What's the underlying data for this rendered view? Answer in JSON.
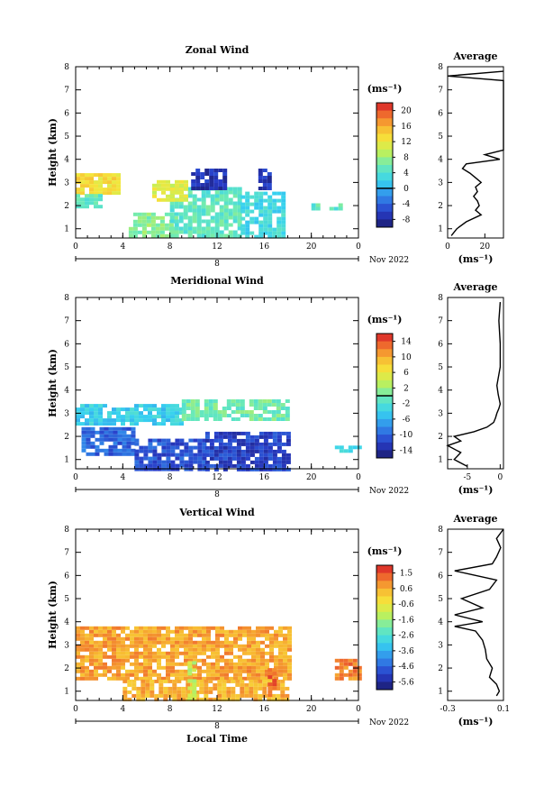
{
  "chart_data": [
    {
      "type": "heatmap",
      "title": "Zonal Wind",
      "ylabel": "Height (km)",
      "xticks": [
        "0",
        "4",
        "8",
        "12",
        "16",
        "20",
        "0"
      ],
      "xlim": [
        0,
        24
      ],
      "yticks": [
        "1",
        "2",
        "3",
        "4",
        "5",
        "6",
        "7",
        "8"
      ],
      "ylim": [
        0.6,
        8.0
      ],
      "date_marker": "8",
      "month_label": "Nov 2022",
      "colorbar": {
        "unit": "(ms⁻¹)",
        "labels": [
          "20",
          "16",
          "12",
          "8",
          "4",
          "0",
          "-4",
          "-8"
        ],
        "range": [
          -10,
          22
        ],
        "zero_line": 0
      },
      "features": [
        {
          "t0": 0.0,
          "t1": 3.5,
          "z0": 2.5,
          "z1": 3.4,
          "v": 13
        },
        {
          "t0": 0.0,
          "t1": 2.0,
          "z0": 1.9,
          "z1": 2.5,
          "v": 5
        },
        {
          "t0": 4.5,
          "t1": 8.5,
          "z0": 0.7,
          "z1": 1.7,
          "v": 7
        },
        {
          "t0": 8.0,
          "t1": 14.0,
          "z0": 0.7,
          "z1": 2.8,
          "v": 5
        },
        {
          "t0": 14.0,
          "t1": 17.5,
          "z0": 0.7,
          "z1": 2.6,
          "v": 3
        },
        {
          "t0": 6.5,
          "t1": 9.5,
          "z0": 2.2,
          "z1": 3.1,
          "v": 11
        },
        {
          "t0": 9.8,
          "t1": 12.6,
          "z0": 2.8,
          "z1": 3.6,
          "v": -7
        },
        {
          "t0": 15.5,
          "t1": 16.5,
          "z0": 2.8,
          "z1": 3.6,
          "v": -7
        },
        {
          "t0": 20.0,
          "t1": 22.5,
          "z0": 1.8,
          "z1": 2.1,
          "v": 5
        }
      ],
      "profile": {
        "title": "Average",
        "xticks": [
          "0",
          "20"
        ],
        "xlim": [
          0,
          30
        ],
        "unit": "(ms⁻¹)",
        "z": [
          0.7,
          1.0,
          1.3,
          1.6,
          1.8,
          2.0,
          2.2,
          2.4,
          2.6,
          2.8,
          3.0,
          3.2,
          3.4,
          3.6,
          3.8,
          4.0,
          4.2,
          4.4,
          5.0,
          6.0,
          7.0,
          7.4,
          7.6,
          7.8
        ],
        "x": [
          2,
          5,
          10,
          18,
          15,
          17,
          16,
          14,
          16,
          15,
          18,
          15,
          12,
          8,
          10,
          28,
          20,
          30,
          30,
          30,
          30,
          30,
          0,
          30
        ]
      }
    },
    {
      "type": "heatmap",
      "title": "Meridional Wind",
      "ylabel": "Height (km)",
      "xticks": [
        "0",
        "4",
        "8",
        "12",
        "16",
        "20",
        "0"
      ],
      "xlim": [
        0,
        24
      ],
      "yticks": [
        "1",
        "2",
        "3",
        "4",
        "5",
        "6",
        "7",
        "8"
      ],
      "ylim": [
        0.6,
        8.0
      ],
      "date_marker": "8",
      "month_label": "Nov 2022",
      "colorbar": {
        "unit": "(ms⁻¹)",
        "labels": [
          "14",
          "10",
          "6",
          "2",
          "-2",
          "-6",
          "-10",
          "-14"
        ],
        "range": [
          -16,
          16
        ],
        "zero_line": 0
      },
      "features": [
        {
          "t0": 0.0,
          "t1": 9.0,
          "z0": 2.6,
          "z1": 3.4,
          "v": -4
        },
        {
          "t0": 9.0,
          "t1": 18.0,
          "z0": 2.8,
          "z1": 3.6,
          "v": 0
        },
        {
          "t0": 0.5,
          "t1": 5.0,
          "z0": 1.3,
          "z1": 2.4,
          "v": -10
        },
        {
          "t0": 5.0,
          "t1": 11.0,
          "z0": 0.6,
          "z1": 1.9,
          "v": -11
        },
        {
          "t0": 11.0,
          "t1": 18.0,
          "z0": 0.6,
          "z1": 2.2,
          "v": -12
        },
        {
          "t0": 22.0,
          "t1": 24.0,
          "z0": 1.4,
          "z1": 1.6,
          "v": -4
        }
      ],
      "profile": {
        "title": "Average",
        "xticks": [
          "-5",
          "0"
        ],
        "xlim": [
          -8,
          0.5
        ],
        "unit": "(ms⁻¹)",
        "z": [
          0.7,
          1.0,
          1.3,
          1.6,
          1.8,
          2.0,
          2.2,
          2.4,
          2.6,
          2.8,
          3.0,
          3.2,
          3.4,
          3.8,
          4.2,
          5.0,
          6.0,
          7.0,
          7.8
        ],
        "x": [
          -5,
          -7,
          -6,
          -8,
          -6,
          -7,
          -4,
          -2,
          -1,
          -0.7,
          -0.5,
          -0.2,
          0,
          -0.3,
          -0.5,
          0,
          0,
          -0.2,
          0
        ]
      }
    },
    {
      "type": "heatmap",
      "title": "Vertical Wind",
      "xlabel": "Local Time",
      "ylabel": "Height (km)",
      "xticks": [
        "0",
        "4",
        "8",
        "12",
        "16",
        "20",
        "0"
      ],
      "xlim": [
        0,
        24
      ],
      "yticks": [
        "1",
        "2",
        "3",
        "4",
        "5",
        "6",
        "7",
        "8"
      ],
      "ylim": [
        0.6,
        8.0
      ],
      "date_marker": "8",
      "month_label": "Nov 2022",
      "colorbar": {
        "unit": "(ms⁻¹)",
        "labels": [
          "1.5",
          "0.6",
          "-0.6",
          "-1.6",
          "-2.6",
          "-3.6",
          "-4.6",
          "-5.6"
        ],
        "range": [
          -6.1,
          2.0
        ],
        "zero_line": null
      },
      "features": [
        {
          "t0": 0.0,
          "t1": 18.0,
          "z0": 1.5,
          "z1": 3.8,
          "v": 0.6
        },
        {
          "t0": 4.0,
          "t1": 18.0,
          "z0": 0.6,
          "z1": 1.5,
          "v": 0.4
        },
        {
          "t0": 9.5,
          "t1": 10.0,
          "z0": 0.7,
          "z1": 2.3,
          "v": -1.2
        },
        {
          "t0": 16.3,
          "t1": 16.7,
          "z0": 0.8,
          "z1": 2.0,
          "v": 1.3
        },
        {
          "t0": 22.0,
          "t1": 24.0,
          "z0": 1.6,
          "z1": 2.4,
          "v": 1.0
        }
      ],
      "profile": {
        "title": "Average",
        "xticks": [
          "-0.3",
          "0.1"
        ],
        "xlim": [
          -0.3,
          0.1
        ],
        "unit": "(ms⁻¹)",
        "z": [
          0.8,
          1.0,
          1.3,
          1.6,
          2.0,
          2.4,
          2.8,
          3.2,
          3.6,
          3.8,
          4.0,
          4.3,
          4.6,
          5.0,
          5.4,
          5.8,
          6.2,
          6.5,
          6.8,
          7.2,
          7.6,
          8.0
        ],
        "x": [
          0.05,
          0.07,
          0.05,
          0.0,
          0.02,
          -0.02,
          -0.03,
          -0.05,
          -0.1,
          -0.25,
          -0.05,
          -0.25,
          -0.05,
          -0.2,
          0.0,
          0.05,
          -0.25,
          0.02,
          0.05,
          0.08,
          0.05,
          0.1
        ]
      }
    }
  ]
}
